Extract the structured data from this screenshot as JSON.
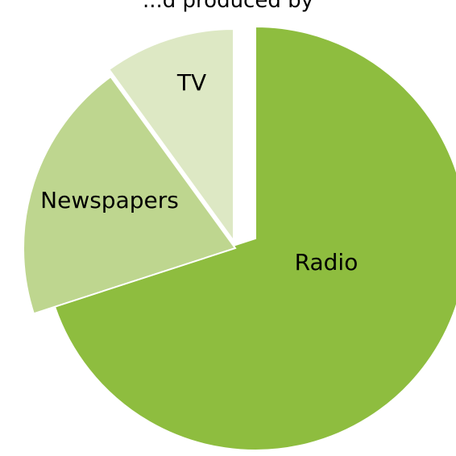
{
  "page": {
    "caption": "...d produced by"
  },
  "chart_data": {
    "type": "pie",
    "labels": [
      "Radio",
      "Newspapers",
      "TV"
    ],
    "values": [
      70,
      20,
      10
    ],
    "colors": [
      "#8ebd3f",
      "#bed68f",
      "#dde8c4"
    ],
    "legend": "none",
    "exploded": true
  }
}
